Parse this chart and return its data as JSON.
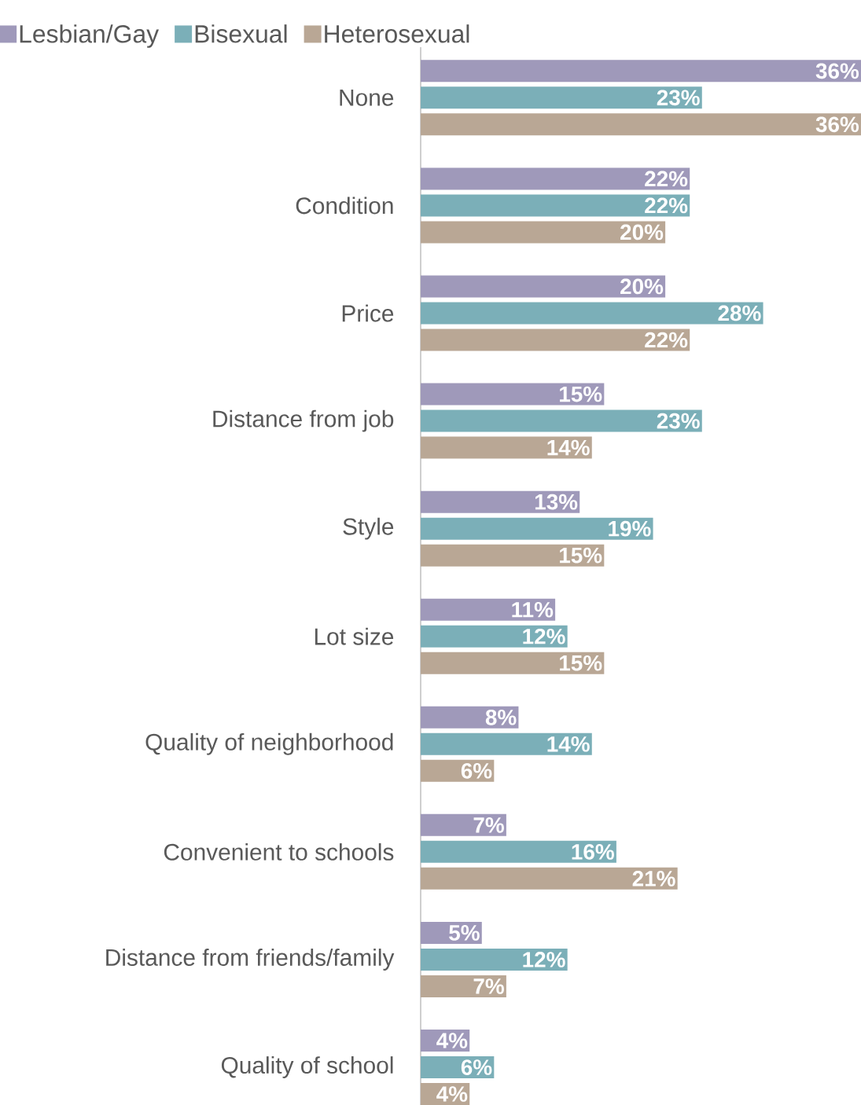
{
  "chart_data": {
    "type": "bar",
    "orientation": "horizontal",
    "legend": "top",
    "xlim": [
      0,
      36
    ],
    "categories": [
      "None",
      "Condition",
      "Price",
      "Distance from job",
      "Style",
      "Lot size",
      "Quality of neighborhood",
      "Convenient to schools",
      "Distance from friends/family",
      "Quality of school"
    ],
    "series": [
      {
        "name": "Lesbian/Gay",
        "color": "#9f99ba",
        "values": [
          36,
          22,
          20,
          15,
          13,
          11,
          8,
          7,
          5,
          4
        ],
        "value_labels": [
          "36%",
          "22%",
          "20%",
          "15%",
          "13%",
          "11%",
          "8%",
          "7%",
          "5%",
          "4%"
        ]
      },
      {
        "name": "Bisexual",
        "color": "#7bafb8",
        "values": [
          23,
          22,
          28,
          23,
          19,
          12,
          14,
          16,
          12,
          6
        ],
        "value_labels": [
          "23%",
          "22%",
          "28%",
          "23%",
          "19%",
          "12%",
          "14%",
          "16%",
          "12%",
          "6%"
        ]
      },
      {
        "name": "Heterosexual",
        "color": "#b9a795",
        "values": [
          36,
          20,
          22,
          14,
          15,
          15,
          6,
          21,
          7,
          4
        ],
        "value_labels": [
          "36%",
          "20%",
          "22%",
          "14%",
          "15%",
          "15%",
          "6%",
          "21%",
          "7%",
          "4%"
        ]
      }
    ]
  }
}
